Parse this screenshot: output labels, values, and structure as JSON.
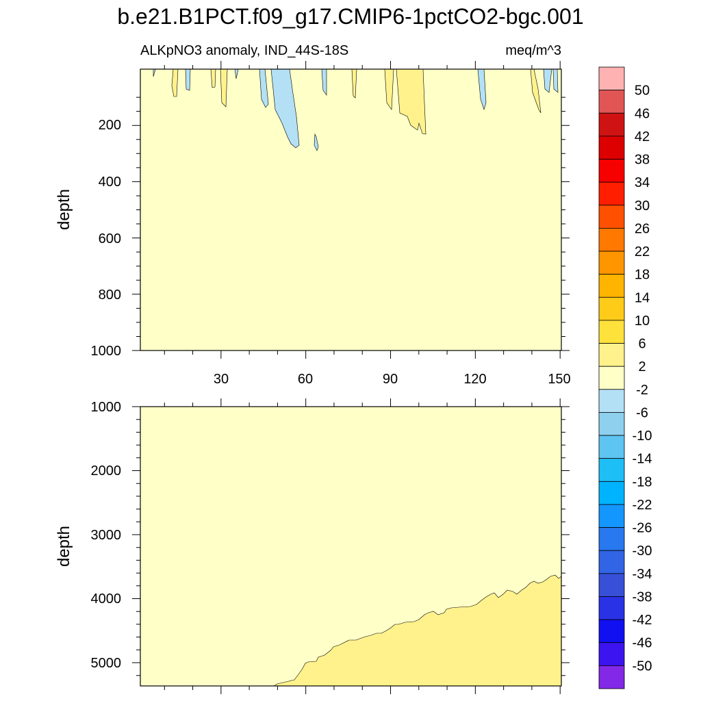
{
  "chart_data": {
    "type": "contour",
    "title": "b.e21.B1PCT.f09_g17.CMIP6-1pctCO2-bgc.001",
    "left_label": "ALKpNO3 anomaly, IND_44S-18S",
    "right_label": "meq/m^3",
    "ylabel": "depth",
    "xlim": [
      0,
      151
    ],
    "x_ticks": [
      "30",
      "60",
      "90",
      "120",
      "150"
    ],
    "panels": [
      {
        "name": "upper",
        "ylim": [
          0,
          1000
        ],
        "y_ticks": [
          "200",
          "400",
          "600",
          "800",
          "1000"
        ],
        "background_level": "-2 to 2",
        "features": [
          {
            "level": "2 to 6",
            "note": "narrow positive tongues near surface around x 12-25, x 80-108, x 140-145",
            "max_depth": 230
          },
          {
            "level": "-6 to -2",
            "note": "negative plumes near x 47-57 reaching ~270 m, small patches near x 16, 63, 122, 147-150",
            "max_depth": 290
          }
        ]
      },
      {
        "name": "lower",
        "ylim": [
          1000,
          5400
        ],
        "y_ticks": [
          "1000",
          "2000",
          "3000",
          "4000",
          "5000"
        ],
        "background_level": "-2 to 2",
        "features": [
          {
            "level": "2 to 6",
            "note": "deep positive wedge rising from ~5350 m at x 48 to ~3650 m at x 150"
          }
        ]
      }
    ],
    "colorbar": {
      "labels": [
        "50",
        "46",
        "42",
        "38",
        "34",
        "30",
        "26",
        "22",
        "18",
        "14",
        "10",
        "6",
        "2",
        "-2",
        "-6",
        "-10",
        "-14",
        "-18",
        "-22",
        "-26",
        "-30",
        "-34",
        "-38",
        "-42",
        "-46",
        "-50"
      ],
      "colors": [
        "#ffb2b2",
        "#e25555",
        "#cf1313",
        "#dd0000",
        "#f60000",
        "#ff1e00",
        "#ff5000",
        "#ff7800",
        "#ff9600",
        "#ffb400",
        "#ffcb19",
        "#ffe13c",
        "#fff28c",
        "#ffffc8",
        "#b3e0f5",
        "#8ed0ee",
        "#5ec4f2",
        "#1ebff6",
        "#00b3ff",
        "#1496ff",
        "#2878f0",
        "#3264e6",
        "#3750d7",
        "#2a32e6",
        "#1010f0",
        "#3c14f0",
        "#8228e6"
      ]
    }
  }
}
